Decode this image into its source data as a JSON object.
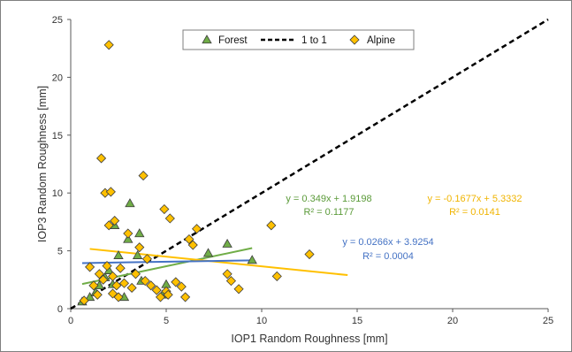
{
  "chart_data": {
    "type": "scatter",
    "xlabel": "IOP1 Random Roughness [mm]",
    "ylabel": "IOP3 Random Roughness [mm]",
    "xlim": [
      0,
      25
    ],
    "ylim": [
      0,
      25
    ],
    "xticks": [
      "0",
      "5",
      "10",
      "15",
      "20",
      "25"
    ],
    "yticks": [
      "0",
      "5",
      "10",
      "15",
      "20",
      "25"
    ],
    "grid": false,
    "legend_position": "top-center",
    "series": [
      {
        "name": "Forest",
        "marker": "triangle",
        "color": "#70ad47",
        "x": [
          0.6,
          1.0,
          1.3,
          1.5,
          1.8,
          2.0,
          2.2,
          2.3,
          2.5,
          2.8,
          3.0,
          3.1,
          3.5,
          3.6,
          3.7,
          4.8,
          5.0,
          7.2,
          8.2,
          9.5
        ],
        "y": [
          0.6,
          1.0,
          1.4,
          2.0,
          2.7,
          3.3,
          2.1,
          7.2,
          4.6,
          1.0,
          6.0,
          9.1,
          4.6,
          6.5,
          2.4,
          1.2,
          2.1,
          4.8,
          5.6,
          4.2
        ]
      },
      {
        "name": "Alpine",
        "marker": "diamond",
        "color": "#ffc000",
        "x": [
          0.7,
          1.0,
          1.2,
          1.4,
          1.5,
          1.6,
          1.7,
          1.8,
          1.9,
          2.0,
          2.0,
          2.1,
          2.2,
          2.2,
          2.3,
          2.4,
          2.5,
          2.6,
          2.8,
          3.0,
          3.2,
          3.4,
          3.6,
          3.8,
          3.9,
          4.0,
          4.2,
          4.5,
          4.7,
          4.9,
          5.0,
          5.1,
          5.2,
          5.5,
          5.8,
          6.0,
          6.2,
          6.4,
          6.6,
          8.2,
          8.4,
          8.8,
          10.5,
          10.8,
          12.5
        ],
        "y": [
          0.7,
          3.6,
          2.0,
          1.2,
          3.0,
          13.0,
          2.5,
          10.0,
          3.7,
          22.8,
          7.2,
          10.1,
          2.8,
          1.3,
          7.6,
          2.0,
          1.0,
          3.5,
          2.2,
          6.5,
          1.8,
          3.0,
          5.3,
          11.5,
          2.4,
          4.3,
          2.0,
          1.6,
          1.0,
          8.6,
          1.5,
          1.2,
          7.8,
          2.3,
          1.9,
          1.0,
          6.0,
          5.5,
          6.9,
          3.0,
          2.4,
          1.7,
          7.2,
          2.8,
          4.7
        ]
      },
      {
        "name": "1 to 1",
        "style": "dashed",
        "color": "#000000",
        "x": [
          0,
          25
        ],
        "y": [
          0,
          25
        ]
      }
    ],
    "trendlines": [
      {
        "series": "Forest",
        "slope": 0.349,
        "intercept": 1.9198,
        "x_range": [
          0.6,
          9.5
        ],
        "color": "#70ad47",
        "equation": "y = 0.349x + 1.9198",
        "r2": "R² = 0.1177"
      },
      {
        "series": "Alpine",
        "slope": -0.1677,
        "intercept": 5.3332,
        "x_range": [
          1.0,
          14.5
        ],
        "color": "#ffc000",
        "equation": "y = -0.1677x + 5.3332",
        "r2": "R² = 0.0141"
      },
      {
        "series": "combined",
        "slope": 0.0266,
        "intercept": 3.9254,
        "x_range": [
          0.6,
          9.5
        ],
        "color": "#4472c4",
        "equation": "y = 0.0266x + 3.9254",
        "r2": "R² = 0.0004"
      }
    ]
  }
}
